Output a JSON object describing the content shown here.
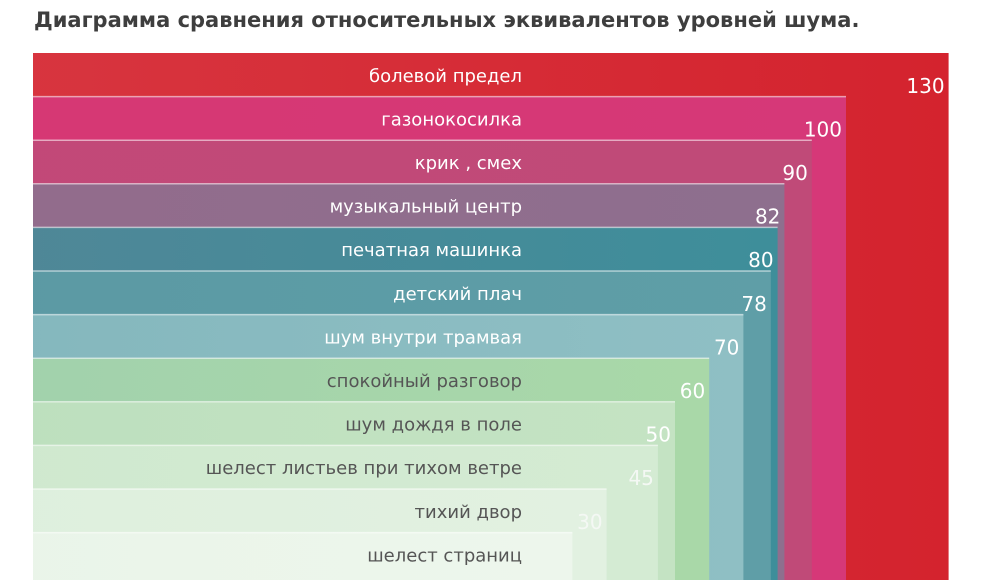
{
  "title": "Диаграмма сравнения относительных эквивалентов уровней шума.",
  "chart_data": {
    "type": "bar",
    "orientation": "horizontal-stacked-steps",
    "title": "Диаграмма сравнения относительных эквивалентов уровней шума.",
    "categories": [
      "болевой предел",
      "газонокосилка",
      "крик , смех",
      "музыкальный центр",
      "печатная машинка",
      "детский плач",
      "шум внутри трамвая",
      "спокойный разговор",
      "шум дождя в поле",
      "шелест листьев при тихом ветре",
      "тихий двор",
      "шелест страниц"
    ],
    "values": [
      130,
      100,
      90,
      82,
      80,
      78,
      70,
      60,
      50,
      45,
      30,
      20
    ],
    "value_labels": [
      "130",
      "100",
      "90",
      "82",
      "80",
      "78",
      "70",
      "60",
      "50",
      "45",
      "30",
      ""
    ],
    "colors": [
      "#d4232e",
      "#d63878",
      "#c04a78",
      "#8e6f8e",
      "#3e8e9a",
      "#5f9ea7",
      "#8fbfc4",
      "#a9d8a8",
      "#c4e3c3",
      "#d4ebd3",
      "#e2f1e1",
      "#edf6ec"
    ],
    "xlabel": "",
    "ylabel": ""
  }
}
